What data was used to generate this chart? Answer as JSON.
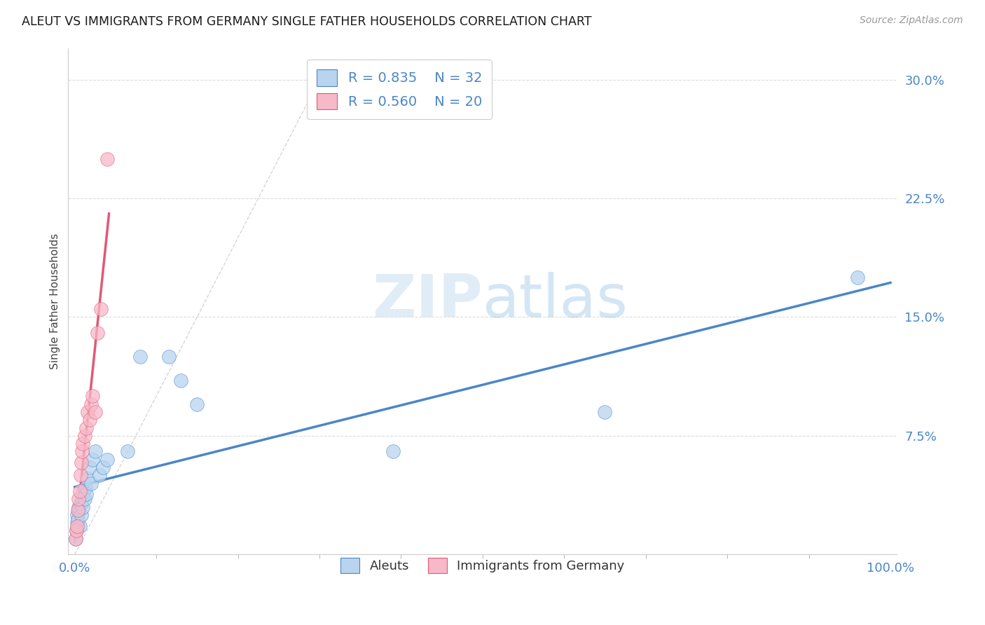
{
  "title": "ALEUT VS IMMIGRANTS FROM GERMANY SINGLE FATHER HOUSEHOLDS CORRELATION CHART",
  "source": "Source: ZipAtlas.com",
  "ylabel": "Single Father Households",
  "background_color": "#ffffff",
  "watermark_zip": "ZIP",
  "watermark_atlas": "atlas",
  "legend_r1": "0.835",
  "legend_n1": "32",
  "legend_r2": "0.560",
  "legend_n2": "20",
  "series1_label": "Aleuts",
  "series2_label": "Immigrants from Germany",
  "series1_color": "#b8d4ee",
  "series2_color": "#f7b8c8",
  "trendline1_color": "#4a86c8",
  "trendline2_color": "#e05878",
  "diagonal_color": "#cccccc",
  "aleuts_x": [
    0.001,
    0.002,
    0.003,
    0.003,
    0.004,
    0.005,
    0.005,
    0.006,
    0.007,
    0.008,
    0.009,
    0.01,
    0.011,
    0.012,
    0.013,
    0.014,
    0.016,
    0.018,
    0.02,
    0.022,
    0.025,
    0.03,
    0.035,
    0.04,
    0.065,
    0.08,
    0.115,
    0.13,
    0.15,
    0.39,
    0.65,
    0.96
  ],
  "aleuts_y": [
    0.01,
    0.015,
    0.02,
    0.025,
    0.022,
    0.028,
    0.03,
    0.018,
    0.032,
    0.025,
    0.035,
    0.03,
    0.04,
    0.035,
    0.042,
    0.038,
    0.048,
    0.055,
    0.045,
    0.06,
    0.065,
    0.05,
    0.055,
    0.06,
    0.065,
    0.125,
    0.125,
    0.11,
    0.095,
    0.065,
    0.09,
    0.175
  ],
  "germany_x": [
    0.001,
    0.002,
    0.003,
    0.004,
    0.005,
    0.006,
    0.007,
    0.008,
    0.009,
    0.01,
    0.012,
    0.014,
    0.016,
    0.018,
    0.02,
    0.022,
    0.025,
    0.028,
    0.032,
    0.04
  ],
  "germany_y": [
    0.01,
    0.015,
    0.018,
    0.028,
    0.035,
    0.04,
    0.05,
    0.058,
    0.065,
    0.07,
    0.075,
    0.08,
    0.09,
    0.085,
    0.095,
    0.1,
    0.09,
    0.14,
    0.155,
    0.25
  ],
  "xlim_min": 0.0,
  "xlim_max": 1.0,
  "ylim_min": 0.0,
  "ylim_max": 0.32,
  "yticks": [
    0.075,
    0.15,
    0.225,
    0.3
  ],
  "ytick_labels": [
    "7.5%",
    "15.0%",
    "22.5%",
    "30.0%"
  ],
  "xtick_positions": [
    0.0,
    1.0
  ],
  "xtick_labels": [
    "0.0%",
    "100.0%"
  ]
}
